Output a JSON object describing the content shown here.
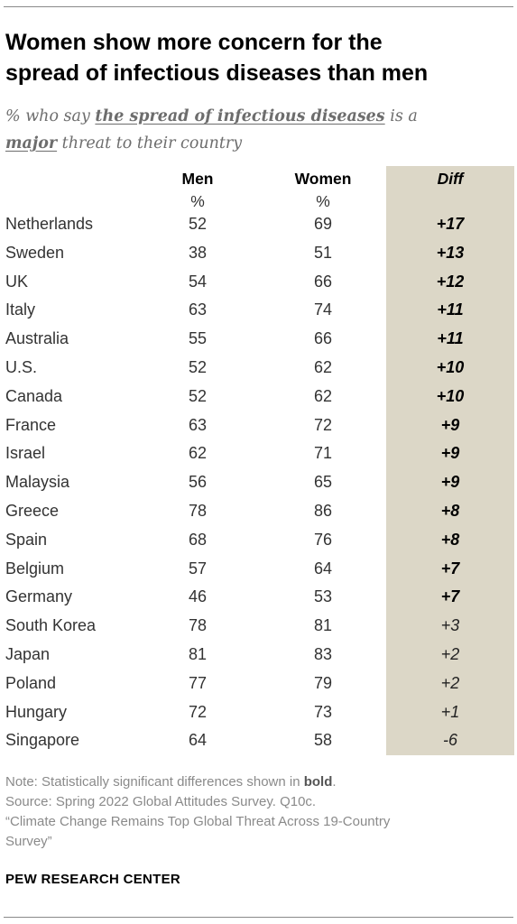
{
  "title_line1": "Women show more concern for the",
  "title_line2": "spread of infectious diseases than men",
  "subtitle": {
    "part1": "% who say ",
    "em1": "the spread of infectious diseases",
    "part2": " is a",
    "em2": "major",
    "part3": " threat to their country"
  },
  "columns": {
    "men": "Men",
    "women": "Women",
    "diff": "Diff",
    "unit": "%"
  },
  "chart_data": {
    "type": "table",
    "columns": [
      "Men",
      "Women",
      "Diff"
    ],
    "rows": [
      {
        "country": "Netherlands",
        "men": "52",
        "women": "69",
        "diff": "+17",
        "significant": true
      },
      {
        "country": "Sweden",
        "men": "38",
        "women": "51",
        "diff": "+13",
        "significant": true
      },
      {
        "country": "UK",
        "men": "54",
        "women": "66",
        "diff": "+12",
        "significant": true
      },
      {
        "country": "Italy",
        "men": "63",
        "women": "74",
        "diff": "+11",
        "significant": true
      },
      {
        "country": "Australia",
        "men": "55",
        "women": "66",
        "diff": "+11",
        "significant": true
      },
      {
        "country": "U.S.",
        "men": "52",
        "women": "62",
        "diff": "+10",
        "significant": true
      },
      {
        "country": "Canada",
        "men": "52",
        "women": "62",
        "diff": "+10",
        "significant": true
      },
      {
        "country": "France",
        "men": "63",
        "women": "72",
        "diff": "+9",
        "significant": true
      },
      {
        "country": "Israel",
        "men": "62",
        "women": "71",
        "diff": "+9",
        "significant": true
      },
      {
        "country": "Malaysia",
        "men": "56",
        "women": "65",
        "diff": "+9",
        "significant": true
      },
      {
        "country": "Greece",
        "men": "78",
        "women": "86",
        "diff": "+8",
        "significant": true
      },
      {
        "country": "Spain",
        "men": "68",
        "women": "76",
        "diff": "+8",
        "significant": true
      },
      {
        "country": "Belgium",
        "men": "57",
        "women": "64",
        "diff": "+7",
        "significant": true
      },
      {
        "country": "Germany",
        "men": "46",
        "women": "53",
        "diff": "+7",
        "significant": true
      },
      {
        "country": "South Korea",
        "men": "78",
        "women": "81",
        "diff": "+3",
        "significant": false
      },
      {
        "country": "Japan",
        "men": "81",
        "women": "83",
        "diff": "+2",
        "significant": false
      },
      {
        "country": "Poland",
        "men": "77",
        "women": "79",
        "diff": "+2",
        "significant": false
      },
      {
        "country": "Hungary",
        "men": "72",
        "women": "73",
        "diff": "+1",
        "significant": false
      },
      {
        "country": "Singapore",
        "men": "64",
        "women": "58",
        "diff": "-6",
        "significant": false
      }
    ]
  },
  "notes": {
    "note_prefix": "Note: Statistically significant differences shown in ",
    "note_bold": "bold",
    "note_suffix": ".",
    "source": "Source: Spring 2022 Global Attitudes Survey. Q10c.",
    "report_line1": "“Climate Change Remains Top Global Threat Across 19-Country",
    "report_line2": "Survey”"
  },
  "brand": "PEW RESEARCH CENTER",
  "colors": {
    "diff_background": "#dcd7c7",
    "subtitle": "#6d6d6d",
    "notes": "#8a8a8a"
  }
}
